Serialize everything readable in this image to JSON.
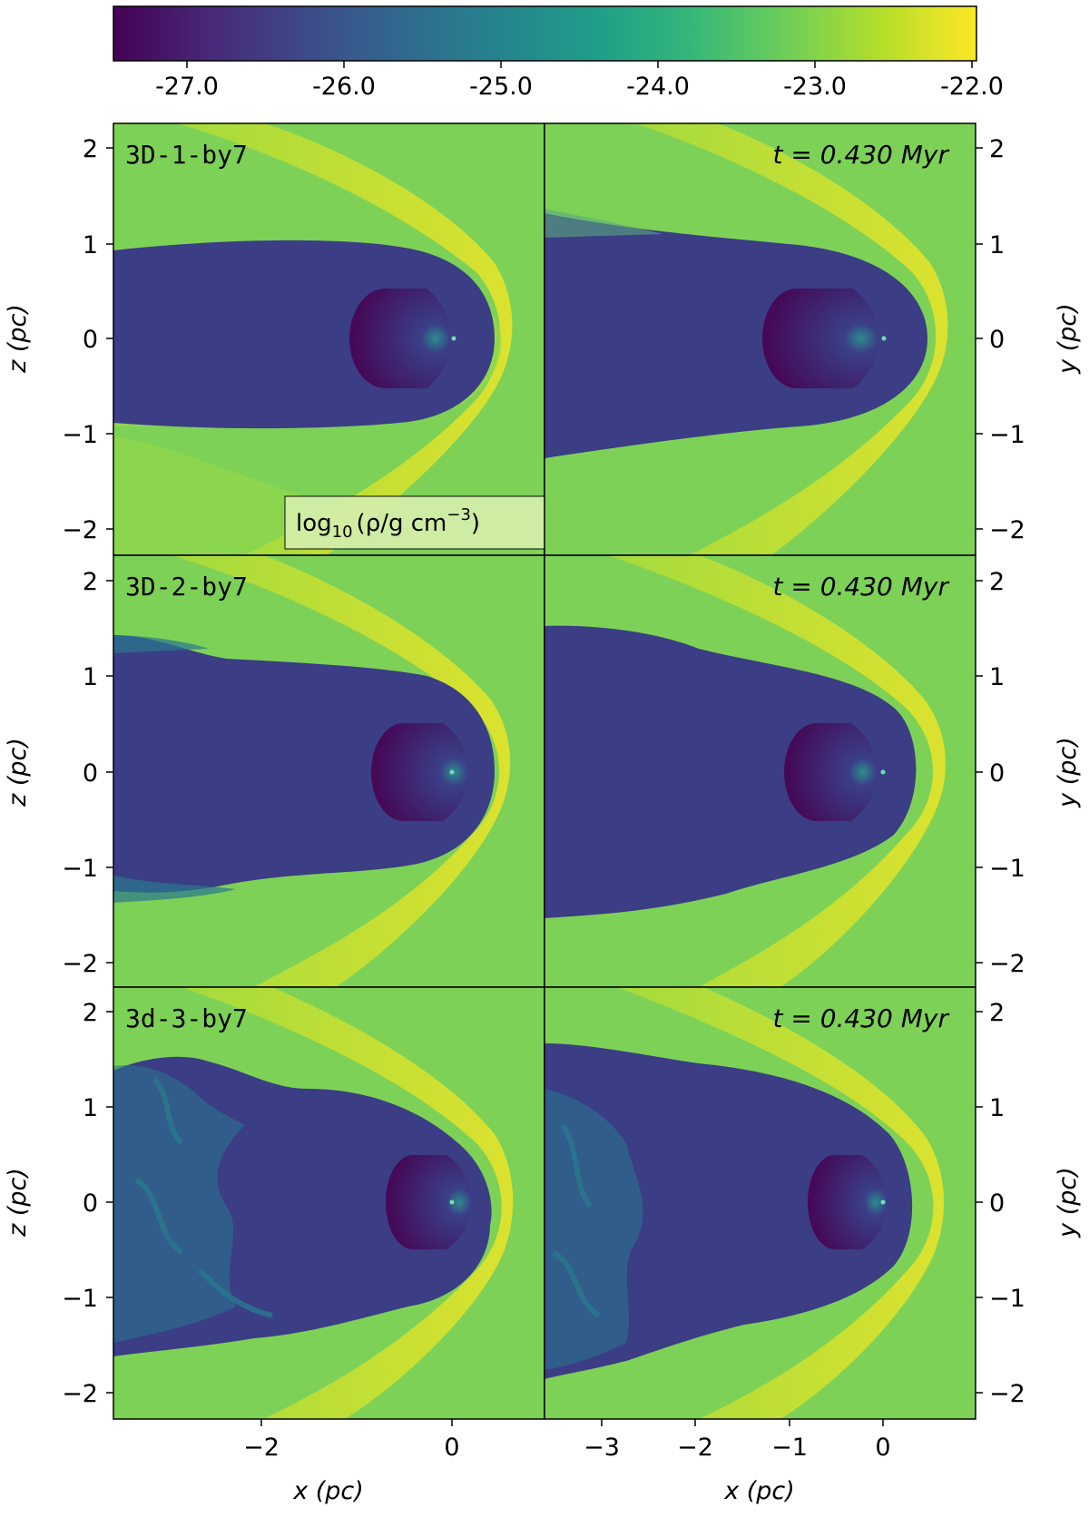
{
  "colorbar": {
    "label_prefix": "log",
    "label_sub": "10",
    "label_body": "(ρ/g cm",
    "label_exp": "−3",
    "label_close": ")",
    "ticks": [
      "-27.0",
      "-26.0",
      "-25.0",
      "-24.0",
      "-23.0",
      "-22.0"
    ],
    "colors": [
      "#440154",
      "#482878",
      "#3e4989",
      "#31688e",
      "#26828e",
      "#1f9e89",
      "#35b779",
      "#6ece58",
      "#b5de2b",
      "#fde725"
    ]
  },
  "panels": [
    {
      "run": "3D-1-by7",
      "time": "t = 0.430 Myr"
    },
    {
      "run": "3D-2-by7",
      "time": "t = 0.430 Myr"
    },
    {
      "run": "3d-3-by7",
      "time": "t = 0.430 Myr"
    }
  ],
  "axes": {
    "left_ylabel": "z (pc)",
    "right_ylabel": "y (pc)",
    "xlabel": "x (pc)",
    "y_ticks": [
      "2",
      "1",
      "0",
      "−1",
      "−2"
    ],
    "left_x_ticks": [
      "−2",
      "0"
    ],
    "right_x_ticks": [
      "−3",
      "−2",
      "−1",
      "0"
    ]
  },
  "colors": {
    "ambient": "#7ed157",
    "shell": "#d7e436",
    "tail": "#3b3d85",
    "wind": "#440a57",
    "turbulence": "#2a788e"
  }
}
